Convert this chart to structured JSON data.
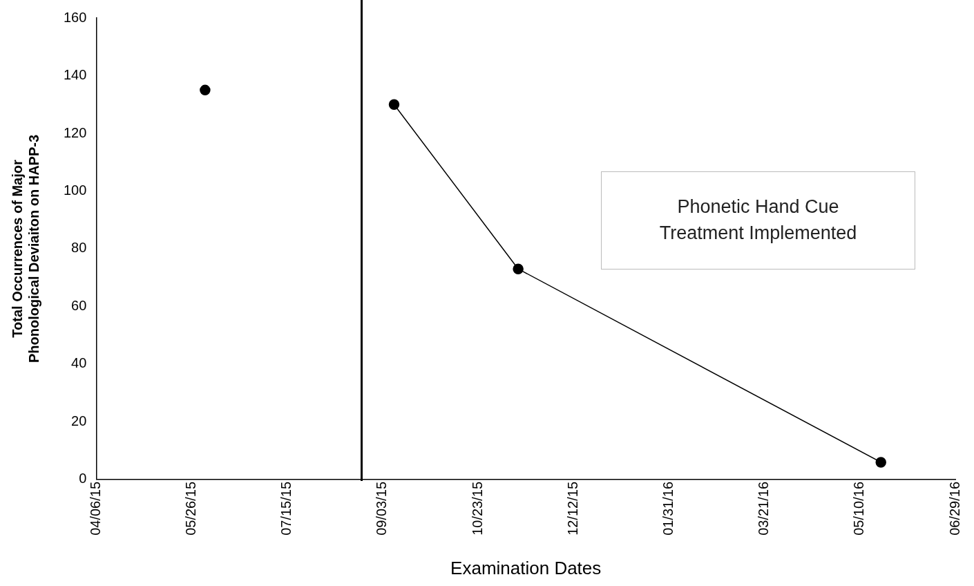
{
  "chart_data": {
    "type": "line",
    "xlabel": "Examination Dates",
    "ylabel": "Total Occurrences of Major Phonological Deviaiton on HAPP-3",
    "series": [
      {
        "type": "scatter",
        "color": "#000000",
        "x": [
          "2015-06-02"
        ],
        "values": [
          135
        ]
      },
      {
        "color": "#000000",
        "x": [
          "2015-09-09",
          "2015-11-13",
          "2016-05-21"
        ],
        "values": [
          130,
          73,
          6
        ]
      }
    ],
    "xlim": [
      "2015-04-06",
      "2016-06-29"
    ],
    "xticks": [
      {
        "value": "2015-04-06",
        "label": "04/06/15"
      },
      {
        "value": "2015-05-26",
        "label": "05/26/15"
      },
      {
        "value": "2015-07-15",
        "label": "07/15/15"
      },
      {
        "value": "2015-09-03",
        "label": "09/03/15"
      },
      {
        "value": "2015-10-23",
        "label": "10/23/15"
      },
      {
        "value": "2015-12-12",
        "label": "12/12/15"
      },
      {
        "value": "2016-01-31",
        "label": "01/31/16"
      },
      {
        "value": "2016-03-21",
        "label": "03/21/16"
      },
      {
        "value": "2016-05-10",
        "label": "05/10/16"
      },
      {
        "value": "2016-06-29",
        "label": "06/29/16"
      }
    ],
    "ylim": [
      0,
      160
    ],
    "yticks": [
      0,
      20,
      40,
      60,
      80,
      100,
      120,
      140,
      160
    ],
    "ref_lines": [
      {
        "axis": "x",
        "value": "2015-08-23",
        "color": "#000000"
      }
    ],
    "annotations": [
      "Phonetic Hand Cue Treatment Implemented"
    ],
    "marker": "circle",
    "line_style": "solid",
    "grid": false,
    "legend": false
  }
}
